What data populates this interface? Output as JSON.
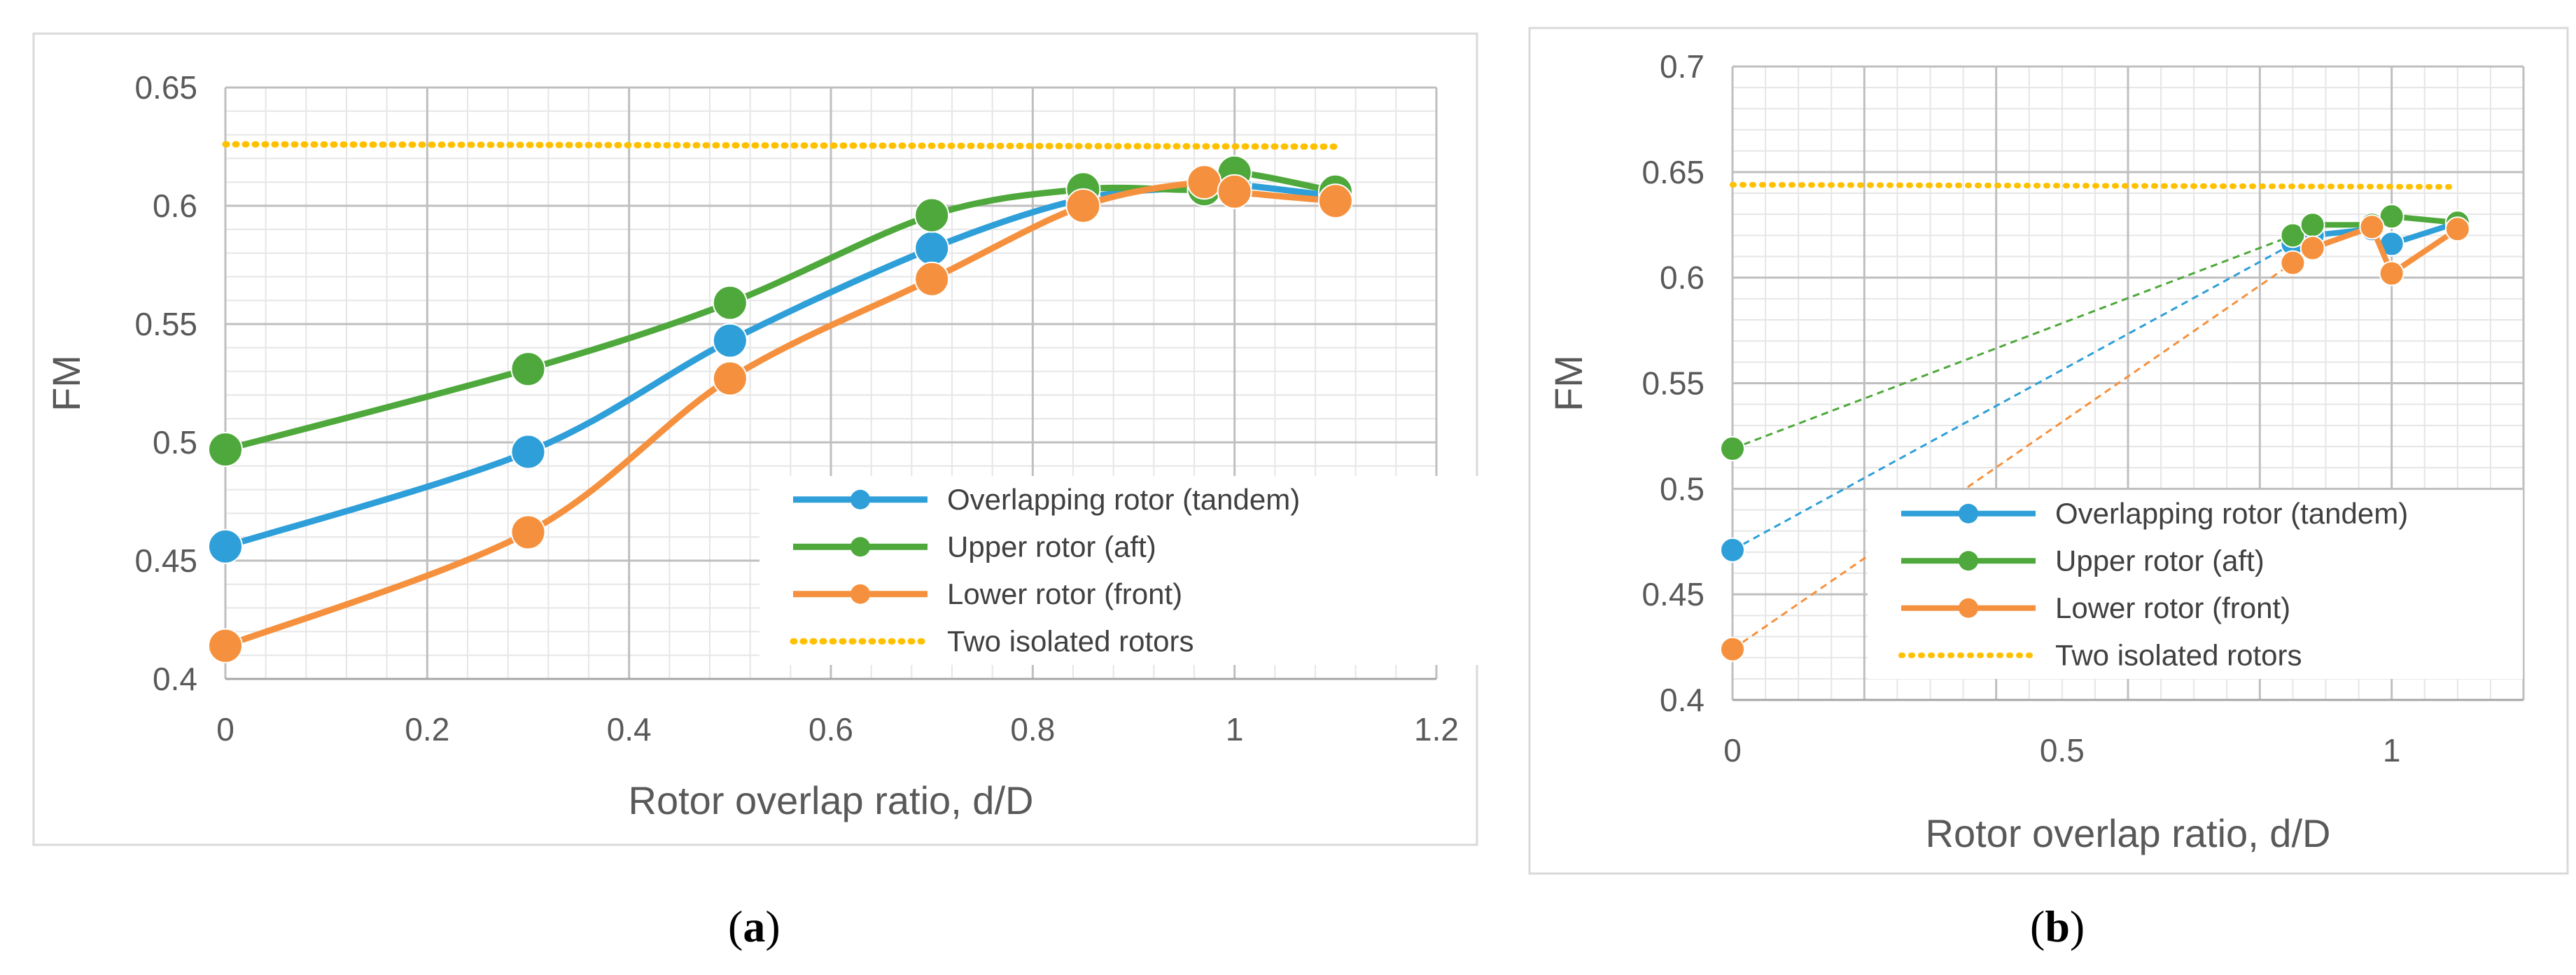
{
  "chart_data": [
    {
      "panel": "a",
      "type": "line",
      "caption": "(a)",
      "caption_letter": "a",
      "xlabel": "Rotor overlap ratio, d/D",
      "ylabel": "FM",
      "xlim": [
        0,
        1.2
      ],
      "ylim": [
        0.4,
        0.65
      ],
      "x_ticks": [
        "0",
        "0.2",
        "0.4",
        "0.6",
        "0.8",
        "1",
        "1.2"
      ],
      "y_ticks": [
        "0.4",
        "0.45",
        "0.5",
        "0.55",
        "0.6",
        "0.65"
      ],
      "grid": true,
      "legend_position": "bottom-right",
      "series": [
        {
          "name": "Overlapping rotor (tandem)",
          "color": "#2e9fd8",
          "style": "solid",
          "x": [
            0,
            0.3,
            0.5,
            0.7,
            0.85,
            0.97,
            1.0,
            1.1
          ],
          "y": [
            0.456,
            0.496,
            0.543,
            0.582,
            0.603,
            0.608,
            0.609,
            0.604
          ]
        },
        {
          "name": "Upper rotor (aft)",
          "color": "#4ea83b",
          "style": "solid",
          "x": [
            0,
            0.3,
            0.5,
            0.7,
            0.85,
            0.97,
            1.0,
            1.1
          ],
          "y": [
            0.497,
            0.531,
            0.559,
            0.596,
            0.607,
            0.607,
            0.614,
            0.606
          ]
        },
        {
          "name": "Lower rotor (front)",
          "color": "#f5913e",
          "style": "solid",
          "x": [
            0,
            0.3,
            0.5,
            0.7,
            0.85,
            0.97,
            1.0,
            1.1
          ],
          "y": [
            0.414,
            0.462,
            0.527,
            0.569,
            0.6,
            0.61,
            0.606,
            0.602
          ]
        },
        {
          "name": "Two isolated rotors",
          "color": "#ffc000",
          "style": "dotted",
          "x": [
            0,
            1.1
          ],
          "y": [
            0.626,
            0.625
          ]
        }
      ]
    },
    {
      "panel": "b",
      "type": "line",
      "caption": "(b)",
      "caption_letter": "b",
      "xlabel": "Rotor overlap ratio, d/D",
      "ylabel": "FM",
      "xlim": [
        0,
        1.2
      ],
      "ylim": [
        0.4,
        0.7
      ],
      "x_ticks": [
        "0",
        "0.5",
        "1"
      ],
      "x_tick_values": [
        0,
        0.5,
        1
      ],
      "y_ticks": [
        "0.4",
        "0.45",
        "0.5",
        "0.55",
        "0.6",
        "0.65",
        "0.7"
      ],
      "grid": true,
      "legend_position": "bottom-right",
      "series": [
        {
          "name": "Overlapping rotor (tandem)",
          "color": "#2e9fd8",
          "style": "solid",
          "x": [
            0,
            0.85,
            0.88,
            0.97,
            1.0,
            1.1
          ],
          "y": [
            0.471,
            0.616,
            0.62,
            0.623,
            0.616,
            0.626
          ],
          "dashed_gap_after_index": 0
        },
        {
          "name": "Upper rotor (aft)",
          "color": "#4ea83b",
          "style": "solid",
          "x": [
            0,
            0.85,
            0.88,
            0.97,
            1.0,
            1.1
          ],
          "y": [
            0.519,
            0.62,
            0.625,
            0.625,
            0.629,
            0.626
          ],
          "dashed_gap_after_index": 0
        },
        {
          "name": "Lower rotor (front)",
          "color": "#f5913e",
          "style": "solid",
          "x": [
            0,
            0.85,
            0.88,
            0.97,
            1.0,
            1.1
          ],
          "y": [
            0.424,
            0.607,
            0.614,
            0.624,
            0.602,
            0.623
          ],
          "dashed_gap_after_index": 0
        },
        {
          "name": "Two isolated rotors",
          "color": "#ffc000",
          "style": "dotted",
          "x": [
            0,
            1.1
          ],
          "y": [
            0.644,
            0.643
          ]
        }
      ]
    }
  ]
}
